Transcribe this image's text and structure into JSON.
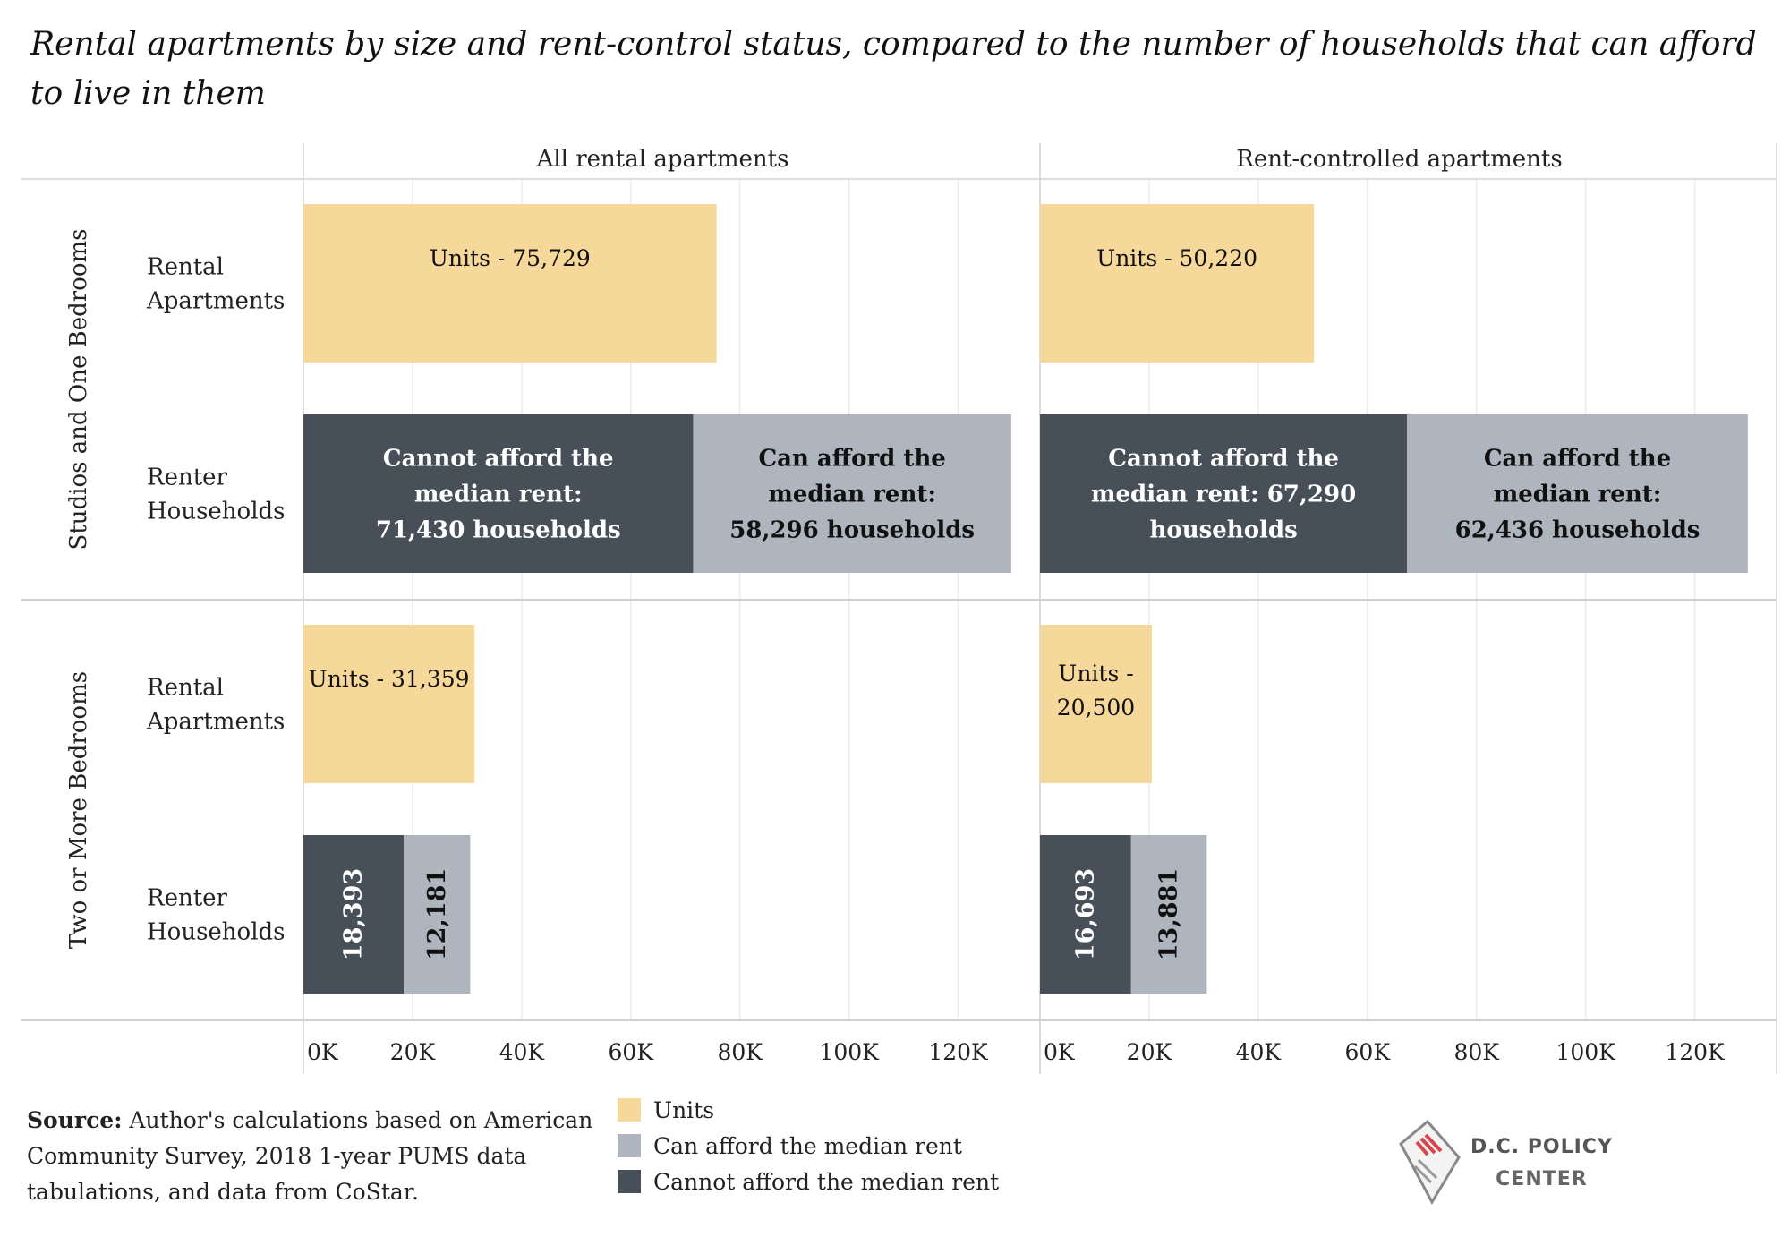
{
  "title": "Rental apartments by size and rent-control status, compared to the number of households that can afford to live in them",
  "chart_data": {
    "type": "bar",
    "orientation": "horizontal",
    "stacked": true,
    "panels": [
      "All rental apartments",
      "Rent-controlled apartments"
    ],
    "row_groups": [
      "Studios and One Bedrooms",
      "Two or More Bedrooms"
    ],
    "row_labels": [
      "Rental\nApartments",
      "Renter\nHouseholds"
    ],
    "xlim": [
      0,
      135000
    ],
    "ticks": [
      0,
      20000,
      40000,
      60000,
      80000,
      100000,
      120000
    ],
    "tick_labels": [
      "0K",
      "20K",
      "40K",
      "60K",
      "80K",
      "100K",
      "120K"
    ],
    "grid": true,
    "bars": [
      {
        "group": 0,
        "row": 0,
        "panel": 0,
        "segments": [
          {
            "type": "units",
            "value": 75729,
            "label": "Units - 75,729"
          }
        ]
      },
      {
        "group": 0,
        "row": 0,
        "panel": 1,
        "segments": [
          {
            "type": "units",
            "value": 50220,
            "label": "Units - 50,220"
          }
        ]
      },
      {
        "group": 0,
        "row": 1,
        "panel": 0,
        "segments": [
          {
            "type": "cannot",
            "value": 71430,
            "label": "Cannot afford the\nmedian rent:\n71,430 households"
          },
          {
            "type": "can",
            "value": 58296,
            "label": "Can afford the\nmedian rent:\n58,296 households"
          }
        ]
      },
      {
        "group": 0,
        "row": 1,
        "panel": 1,
        "segments": [
          {
            "type": "cannot",
            "value": 67290,
            "label": "Cannot afford the\nmedian rent: 67,290\nhouseholds"
          },
          {
            "type": "can",
            "value": 62436,
            "label": "Can afford the\nmedian rent:\n62,436 households"
          }
        ]
      },
      {
        "group": 1,
        "row": 0,
        "panel": 0,
        "segments": [
          {
            "type": "units",
            "value": 31359,
            "label": "Units - 31,359"
          }
        ]
      },
      {
        "group": 1,
        "row": 0,
        "panel": 1,
        "segments": [
          {
            "type": "units",
            "value": 20500,
            "label": "Units -\n20,500"
          }
        ]
      },
      {
        "group": 1,
        "row": 1,
        "panel": 0,
        "segments": [
          {
            "type": "cannot",
            "value": 18393,
            "label": "18,393"
          },
          {
            "type": "can",
            "value": 12181,
            "label": "12,181"
          }
        ]
      },
      {
        "group": 1,
        "row": 1,
        "panel": 1,
        "segments": [
          {
            "type": "cannot",
            "value": 16693,
            "label": "16,693"
          },
          {
            "type": "can",
            "value": 13881,
            "label": "13,881"
          }
        ]
      }
    ],
    "legend": {
      "placement": "bottom",
      "items": [
        {
          "type": "units",
          "label": "Units",
          "color": "#F6D89A"
        },
        {
          "type": "can",
          "label": "Can afford the median rent",
          "color": "#AEB5BE"
        },
        {
          "type": "cannot",
          "label": "Cannot afford the median rent",
          "color": "#474F59"
        }
      ]
    }
  },
  "source": {
    "label": "Source:",
    "text": "Author's calculations based on American Community Survey, 2018 1-year PUMS data tabulations, and data from CoStar."
  },
  "logo": {
    "line1": "D.C. POLICY",
    "line2": "CENTER"
  }
}
